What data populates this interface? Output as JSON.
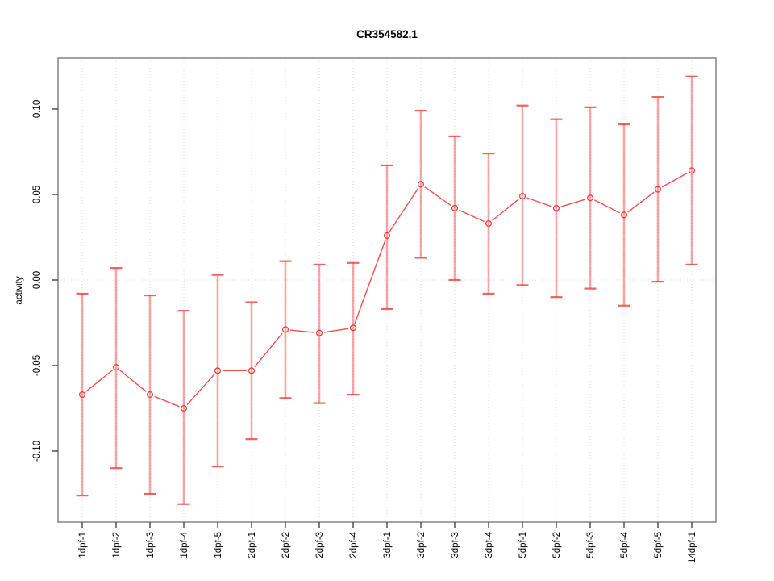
{
  "title": "CR354582.1",
  "chart_data": {
    "type": "line",
    "title": "CR354582.1",
    "xlabel": "",
    "ylabel": "activity",
    "legend": "none",
    "grid": "vertical-dotted-per-category",
    "zero_line": "dotted",
    "point_marker": "open-circle",
    "error_bars": true,
    "categories": [
      "1dpf-1",
      "1dpf-2",
      "1dpf-3",
      "1dpf-4",
      "1dpf-5",
      "2dpf-1",
      "2dpf-2",
      "2dpf-3",
      "2dpf-4",
      "3dpf-1",
      "3dpf-2",
      "3dpf-3",
      "3dpf-4",
      "5dpf-1",
      "5dpf-2",
      "5dpf-3",
      "5dpf-4",
      "5dpf-5",
      "14dpf-1"
    ],
    "series": [
      {
        "name": "activity",
        "values": [
          -0.067,
          -0.051,
          -0.067,
          -0.075,
          -0.053,
          -0.053,
          -0.029,
          -0.031,
          -0.028,
          0.026,
          0.056,
          0.042,
          0.033,
          0.049,
          0.042,
          0.048,
          0.038,
          0.053,
          0.064
        ],
        "upper": [
          -0.008,
          0.007,
          -0.009,
          -0.018,
          0.003,
          -0.013,
          0.011,
          0.009,
          0.01,
          0.067,
          0.099,
          0.084,
          0.074,
          0.102,
          0.094,
          0.101,
          0.091,
          0.107,
          0.119
        ],
        "lower": [
          -0.126,
          -0.11,
          -0.125,
          -0.131,
          -0.109,
          -0.093,
          -0.069,
          -0.072,
          -0.067,
          -0.017,
          0.013,
          0.0,
          -0.008,
          -0.003,
          -0.01,
          -0.005,
          -0.015,
          -0.001,
          0.009
        ]
      }
    ],
    "yticks": [
      -0.1,
      -0.05,
      0.0,
      0.05,
      0.1
    ],
    "ytick_labels": [
      "-0.10",
      "-0.05",
      "0.00",
      "0.05",
      "0.10"
    ],
    "ylim": [
      -0.1415,
      0.1297
    ],
    "colors": {
      "series": "#ee3b3b",
      "errorbar_stem": "#ee3b3b",
      "errorbar_cap": "#ee3b3b",
      "gridline": "#d9d9d9",
      "zero_line": "#dddddd",
      "box": "#8a8a8a",
      "tick": "#444444",
      "text": "#000000",
      "background": "#ffffff"
    }
  }
}
